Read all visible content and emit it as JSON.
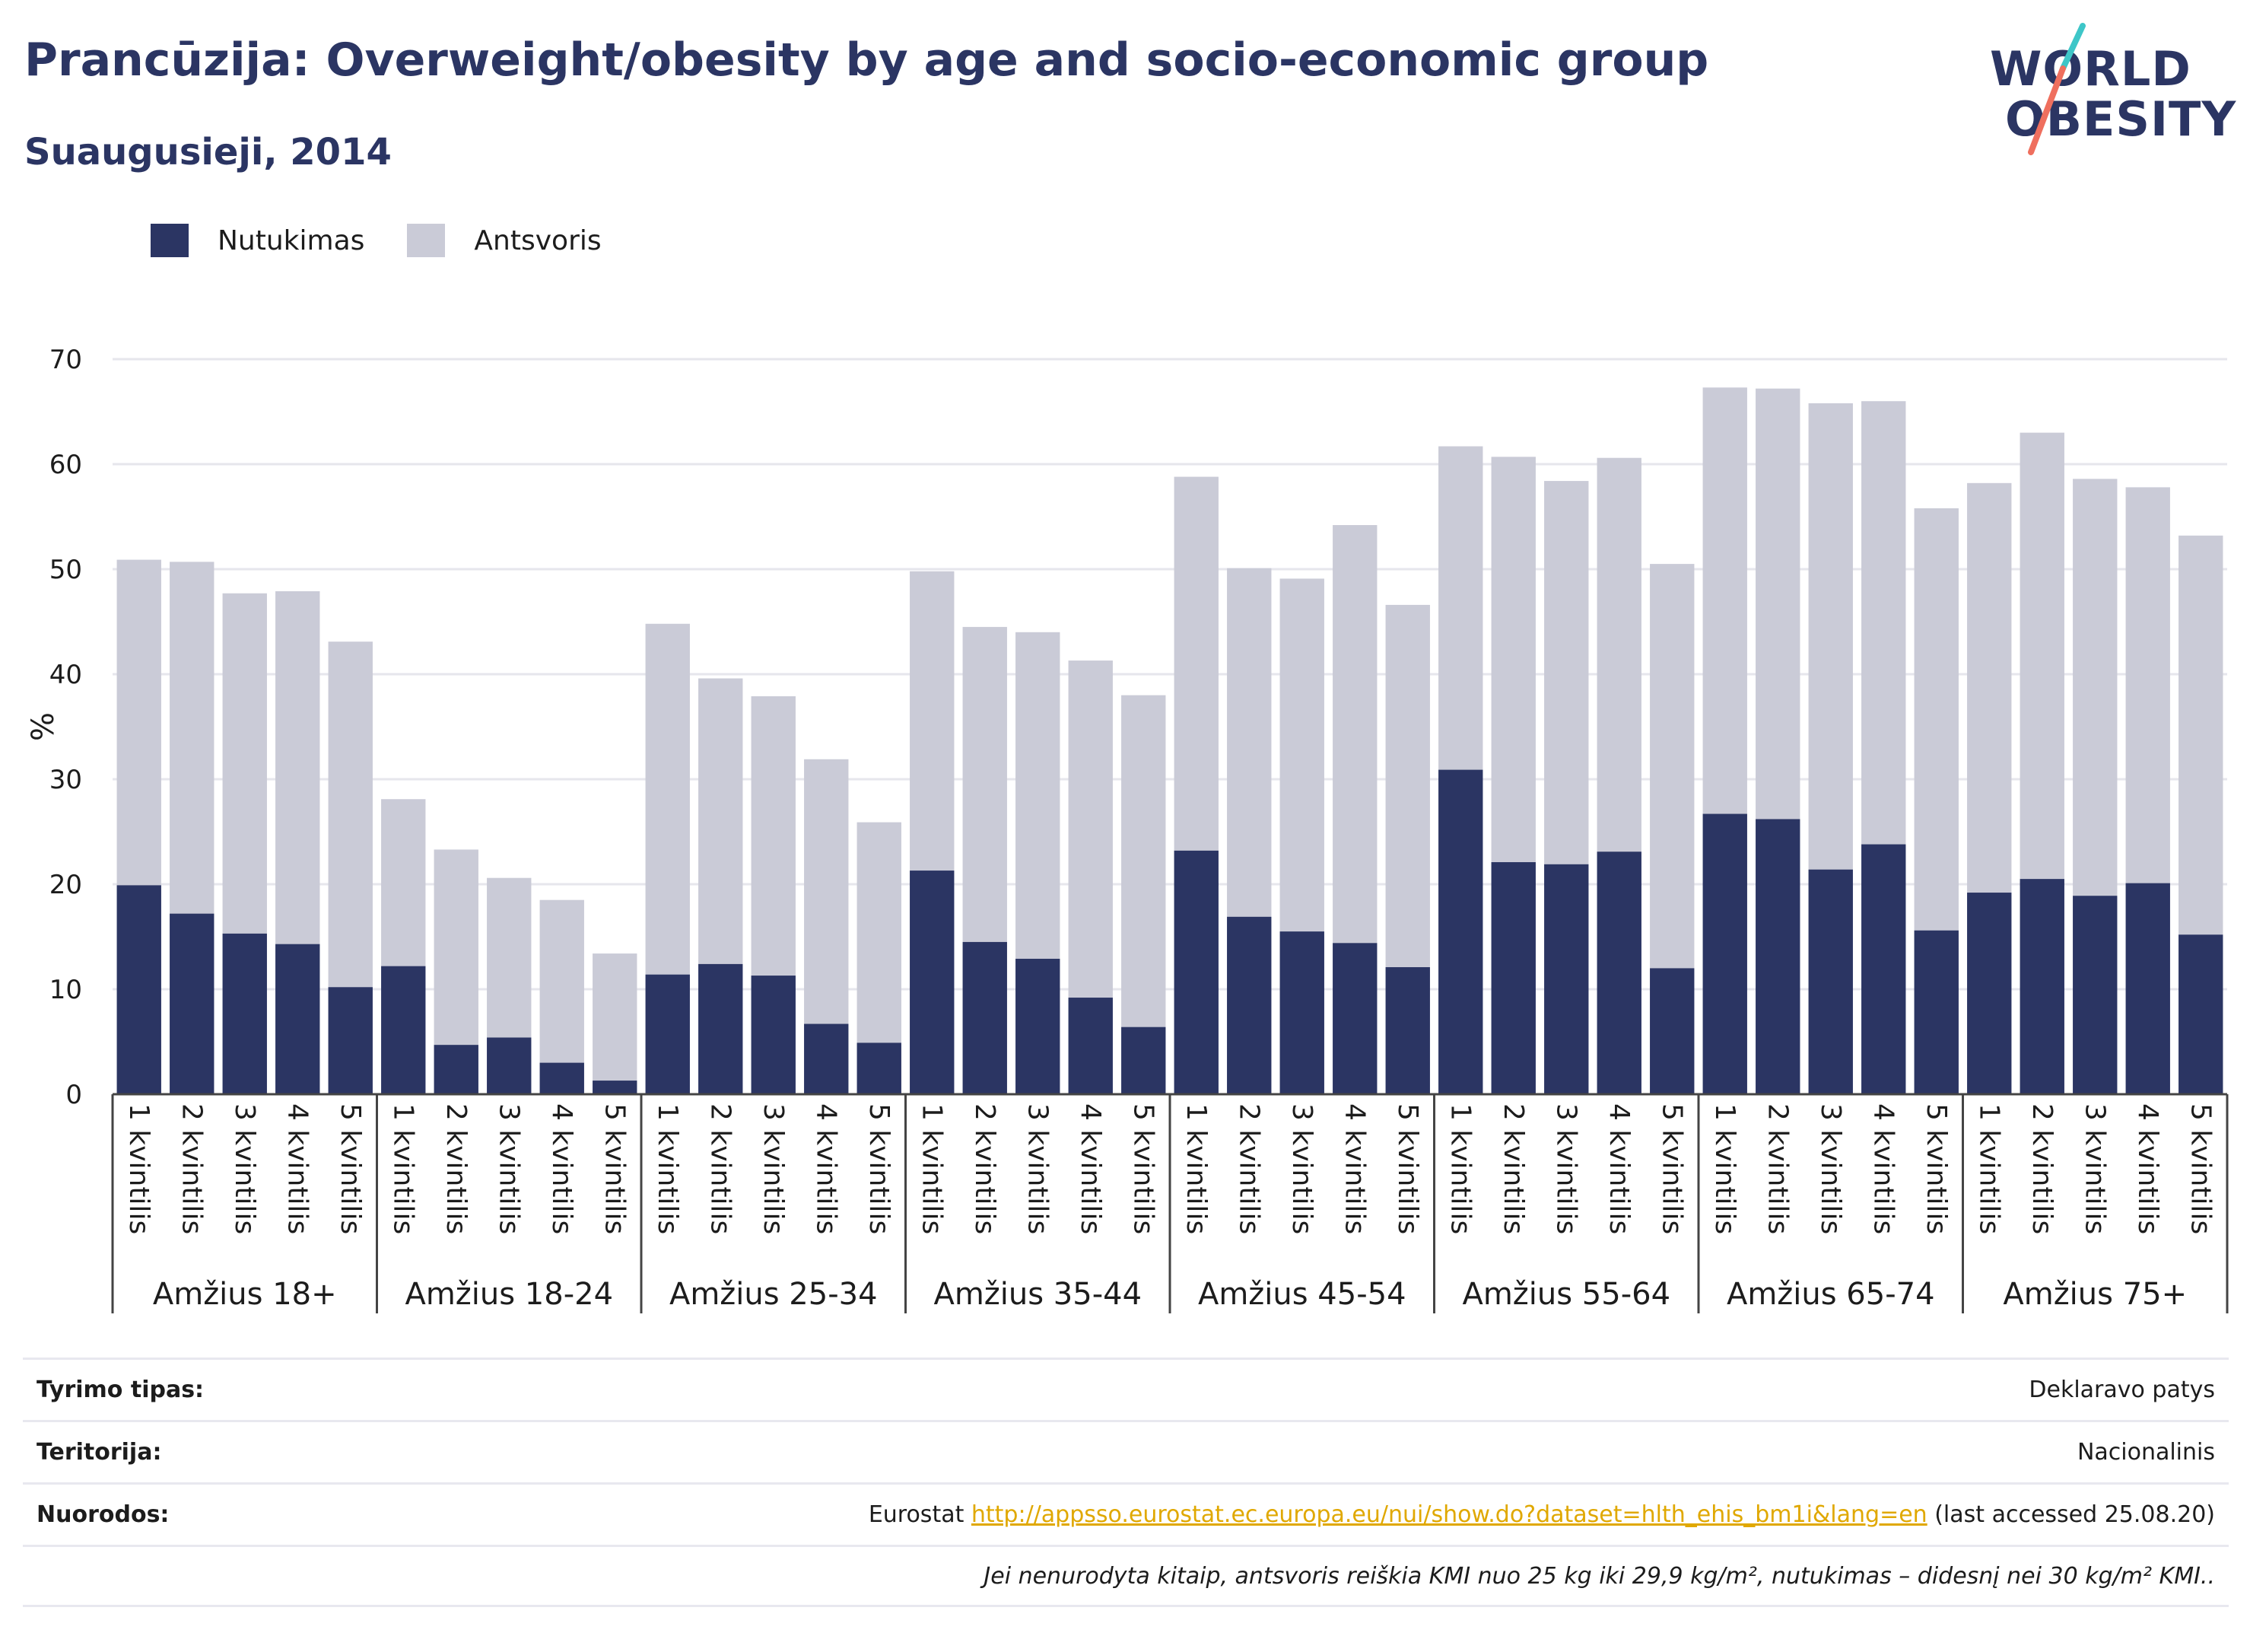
{
  "title": "Prancūzija: Overweight/obesity by age and socio-economic group",
  "subtitle": "Suaugusieji, 2014",
  "logo": {
    "line1": "WORLD",
    "line2": "OBESITY"
  },
  "colors": {
    "obesity": "#2b3563",
    "overweight": "#cacbd7",
    "title": "#2b3563",
    "link": "#e0a800",
    "logo_slash_top": "#3ec6c8",
    "logo_slash_bottom": "#ef6f5e"
  },
  "legend": [
    {
      "label": "Nutukimas",
      "color": "#2b3563"
    },
    {
      "label": "Antsvoris",
      "color": "#cacbd7"
    }
  ],
  "chart_data": {
    "type": "bar",
    "stacked": true,
    "ylabel": "%",
    "ylim": [
      0,
      70
    ],
    "yticks": [
      0,
      10,
      20,
      30,
      40,
      50,
      60,
      70
    ],
    "grid": true,
    "legend_position": "top-left",
    "subcategories": [
      "1 kvintilis",
      "2 kvintilis",
      "3 kvintilis",
      "4 kvintilis",
      "5 kvintilis"
    ],
    "groups": [
      "Amžius 18+",
      "Amžius 18-24",
      "Amžius 25-34",
      "Amžius 35-44",
      "Amžius 45-54",
      "Amžius 55-64",
      "Amžius 65-74",
      "Amžius 75+"
    ],
    "series": [
      {
        "name": "Nutukimas",
        "values": [
          19.9,
          17.2,
          15.3,
          14.3,
          10.2,
          12.2,
          4.7,
          5.4,
          3.0,
          1.3,
          11.4,
          12.4,
          11.3,
          6.7,
          4.9,
          21.3,
          14.5,
          12.9,
          9.2,
          6.4,
          23.2,
          16.9,
          15.5,
          14.4,
          12.1,
          30.9,
          22.1,
          21.9,
          23.1,
          12.0,
          26.7,
          26.2,
          21.4,
          23.8,
          15.6,
          19.2,
          20.5,
          18.9,
          20.1,
          15.2
        ]
      },
      {
        "name": "Antsvoris",
        "values": [
          31.0,
          33.5,
          32.4,
          33.6,
          32.9,
          15.9,
          18.6,
          15.2,
          15.5,
          12.1,
          33.4,
          27.2,
          26.6,
          25.2,
          21.0,
          28.5,
          30.0,
          31.1,
          32.1,
          31.6,
          35.6,
          33.2,
          33.6,
          39.8,
          34.5,
          30.8,
          38.6,
          36.5,
          37.5,
          38.5,
          40.6,
          41.0,
          44.4,
          42.2,
          40.2,
          39.0,
          42.5,
          39.7,
          37.7,
          38.0
        ]
      }
    ]
  },
  "footer": {
    "rows": [
      {
        "label": "Tyrimo tipas:",
        "value": "Deklaravo patys"
      },
      {
        "label": "Teritorija:",
        "value": "Nacionalinis"
      }
    ],
    "refs": {
      "label": "Nuorodos:",
      "prefix": "Eurostat ",
      "link": "http://appsso.eurostat.ec.europa.eu/nui/show.do?dataset=hlth_ehis_bm1i&lang=en",
      "suffix": " (last accessed 25.08.20)"
    },
    "note": "Jei nenurodyta kitaip, antsvoris reiškia KMI nuo 25 kg iki 29,9 kg/m², nutukimas – didesnį nei 30 kg/m² KMI.."
  }
}
